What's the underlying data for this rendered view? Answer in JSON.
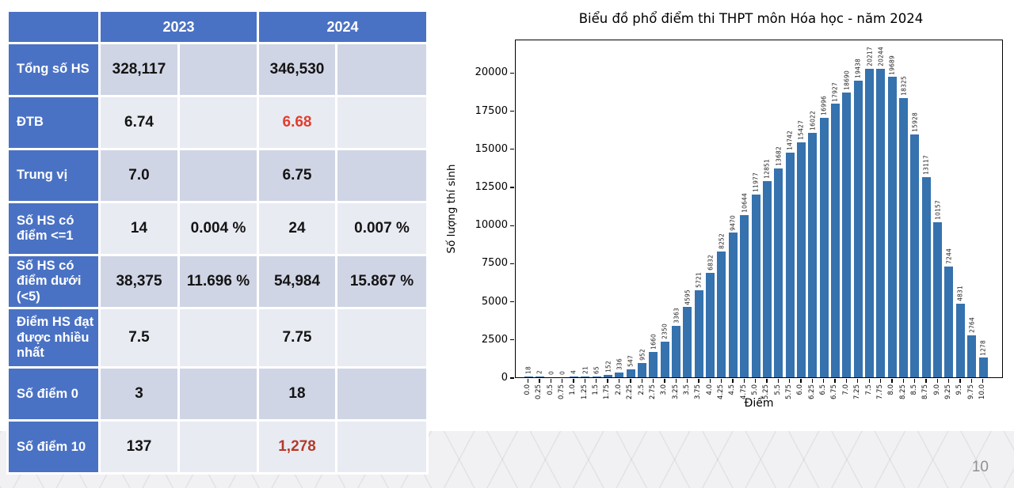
{
  "page": {
    "number": "10"
  },
  "colors": {
    "table_header_bg": "#4a72c4",
    "row_band_dark": "#d0d5e5",
    "row_band_light": "#e9ebf3",
    "value_red_bright": "#e23d2e",
    "value_red_dark": "#b23b2b",
    "bar_color": "#3572ae",
    "page_number_gray": "#909090"
  },
  "table": {
    "header": {
      "blank": "",
      "y2023": "2023",
      "y2024": "2024"
    },
    "rows": [
      {
        "label": "Tổng số HS",
        "v2023": "328,117",
        "p2023": "",
        "v2024": "346,530",
        "p2024": ""
      },
      {
        "label": "ĐTB",
        "v2023": "6.74",
        "p2023": "",
        "v2024": "6.68",
        "p2024": "",
        "v2024_color": "#e23d2e"
      },
      {
        "label": "Trung vị",
        "v2023": "7.0",
        "p2023": "",
        "v2024": "6.75",
        "p2024": ""
      },
      {
        "label": "Số HS có điểm <=1",
        "v2023": "14",
        "p2023": "0.004 %",
        "v2024": "24",
        "p2024": "0.007 %"
      },
      {
        "label": "Số HS có điểm dưới (<5)",
        "v2023": "38,375",
        "p2023": "11.696 %",
        "v2024": "54,984",
        "p2024": "15.867 %"
      },
      {
        "label": "Điểm HS đạt được nhiều nhất",
        "v2023": "7.5",
        "p2023": "",
        "v2024": "7.75",
        "p2024": ""
      },
      {
        "label": "Số điểm 0",
        "v2023": "3",
        "p2023": "",
        "v2024": "18",
        "p2024": ""
      },
      {
        "label": "Số điểm 10",
        "v2023": "137",
        "p2023": "",
        "v2024": "1,278",
        "p2024": "",
        "v2024_color": "#b23b2b"
      }
    ]
  },
  "chart_data": {
    "type": "bar",
    "title": "Biểu đồ phổ điểm thi THPT môn Hóa học - năm 2024",
    "xlabel": "Điểm",
    "ylabel": "Số lượng thí sinh",
    "categories": [
      "0.0",
      "0.25",
      "0.5",
      "0.75",
      "1.0",
      "1.25",
      "1.5",
      "1.75",
      "2.0",
      "2.25",
      "2.5",
      "2.75",
      "3.0",
      "3.25",
      "3.5",
      "3.75",
      "4.0",
      "4.25",
      "4.5",
      "4.75",
      "5.0",
      "5.25",
      "5.5",
      "5.75",
      "6.0",
      "6.25",
      "6.5",
      "6.75",
      "7.0",
      "7.25",
      "7.5",
      "7.75",
      "8.0",
      "8.25",
      "8.5",
      "8.75",
      "9.0",
      "9.25",
      "9.5",
      "9.75",
      "10.0"
    ],
    "values": [
      18,
      2,
      0,
      0,
      4,
      21,
      65,
      152,
      336,
      547,
      952,
      1660,
      2350,
      3363,
      4595,
      5721,
      6832,
      8252,
      9470,
      10644,
      11977,
      12851,
      13682,
      14742,
      15427,
      16022,
      16996,
      17927,
      18690,
      19438,
      20217,
      20244,
      19689,
      18325,
      15928,
      13117,
      10157,
      7244,
      4831,
      2764,
      1278
    ],
    "yticks": [
      0,
      2500,
      5000,
      7500,
      10000,
      12500,
      15000,
      17500,
      20000
    ],
    "ylim": [
      0,
      22200
    ],
    "grid": false,
    "legend": null,
    "bar_value_labels": true
  }
}
